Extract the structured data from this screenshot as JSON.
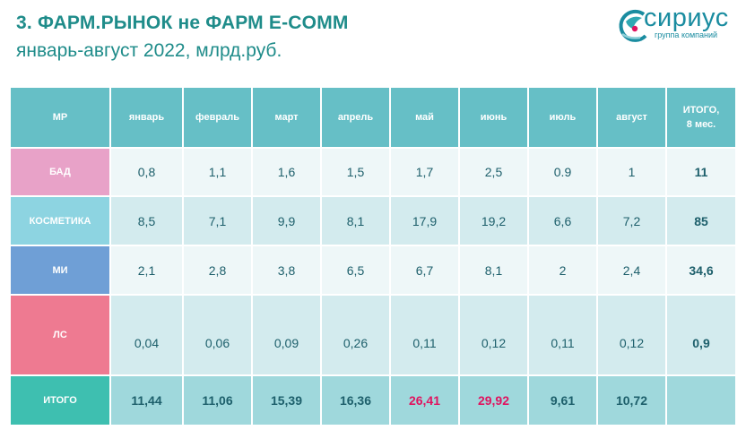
{
  "header": {
    "title": "3. ФАРМ.РЫНОК не ФАРМ E-COMM",
    "subtitle": "январь-август 2022, млрд.руб."
  },
  "logo": {
    "name": "сириус",
    "tagline": "группа компаний",
    "colors": {
      "primary": "#1a8ca0",
      "accent": "#e0135f"
    }
  },
  "table": {
    "columns": [
      "МР",
      "январь",
      "февраль",
      "март",
      "апрель",
      "май",
      "июнь",
      "июль",
      "август",
      "ИТОГО, 8 мес."
    ],
    "rows": [
      {
        "label": "БАД",
        "values": [
          "0,8",
          "1,1",
          "1,6",
          "1,5",
          "1,7",
          "2,5",
          "0.9",
          "1"
        ],
        "total": "11"
      },
      {
        "label": "КОСМЕТИКА",
        "values": [
          "8,5",
          "7,1",
          "9,9",
          "8,1",
          "17,9",
          "19,2",
          "6,6",
          "7,2"
        ],
        "total": "85"
      },
      {
        "label": "МИ",
        "values": [
          "2,1",
          "2,8",
          "3,8",
          "6,5",
          "6,7",
          "8,1",
          "2",
          "2,4"
        ],
        "total": "34,6"
      },
      {
        "label": "ЛС",
        "values": [
          "0,04",
          "0,06",
          "0,09",
          "0,26",
          "0,11",
          "0,12",
          "0,11",
          "0,12"
        ],
        "total": "0,9"
      }
    ],
    "totals": {
      "label": "ИТОГО",
      "values": [
        "11,44",
        "11,06",
        "15,39",
        "16,36",
        "26,41",
        "29,92",
        "9,61",
        "10,72"
      ],
      "total": "",
      "highlight_color": "#e0135f"
    }
  }
}
